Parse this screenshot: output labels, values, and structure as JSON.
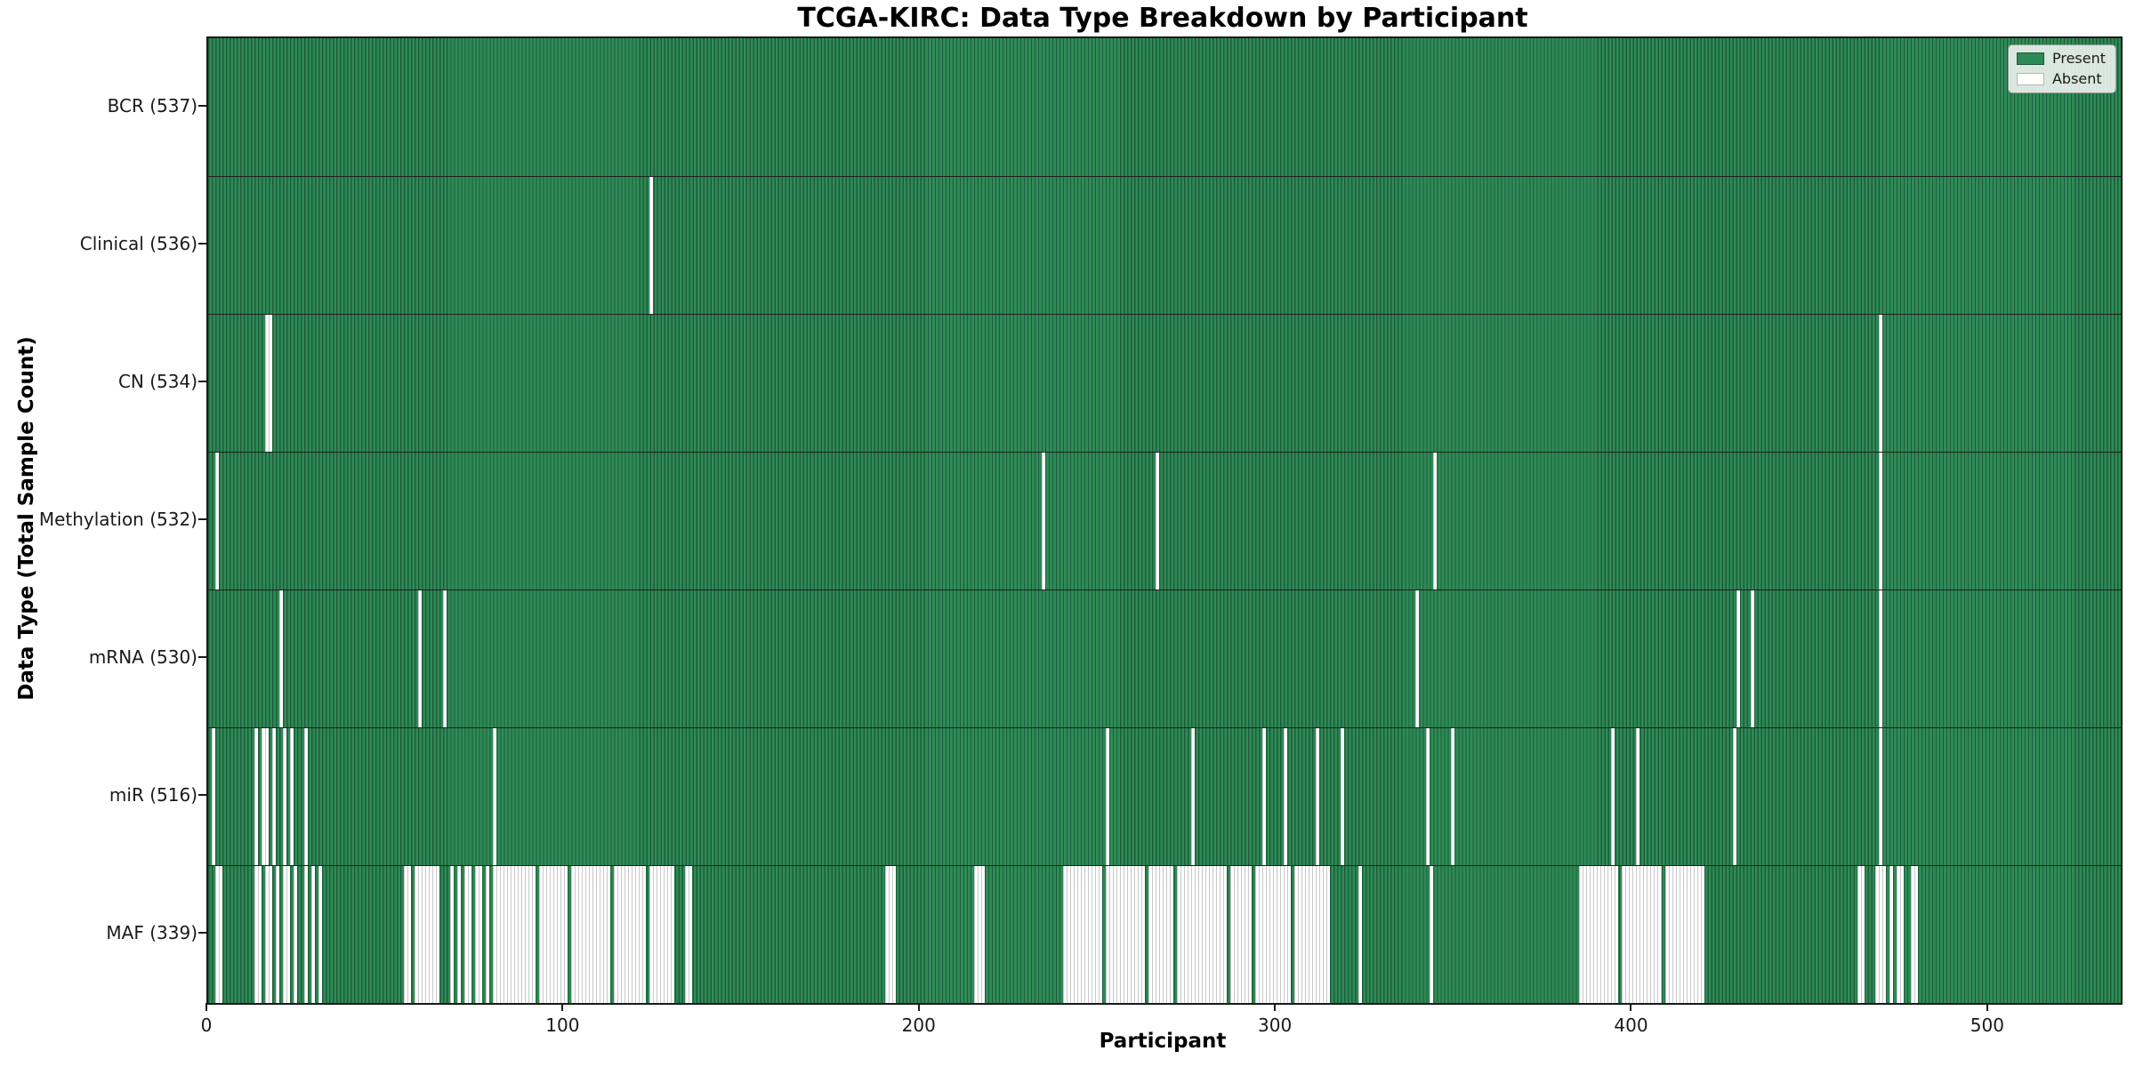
{
  "chart_data": {
    "type": "heatmap",
    "title": "TCGA-KIRC: Data Type Breakdown by Participant",
    "xlabel": "Participant",
    "ylabel": "Data Type (Total Sample Count)",
    "n_participants": 537,
    "x_ticks": [
      0,
      100,
      200,
      300,
      400,
      500
    ],
    "legend": {
      "position": "upper right",
      "present_label": "Present",
      "absent_label": "Absent"
    },
    "colors": {
      "present_fill": "#2e8b57",
      "present_edge": "#1d5c3a",
      "absent_fill": "#ffffff",
      "absent_edge": "#c9c9c9",
      "spine": "#1a1a1a"
    },
    "grid": false,
    "rows": [
      {
        "data_type": "BCR",
        "label": "BCR (537)",
        "present_count": 537,
        "absent_ranges": []
      },
      {
        "data_type": "Clinical",
        "label": "Clinical (536)",
        "present_count": 536,
        "absent_ranges": [
          [
            124,
            124
          ]
        ]
      },
      {
        "data_type": "CN",
        "label": "CN (534)",
        "present_count": 534,
        "absent_ranges": [
          [
            16,
            17
          ],
          [
            469,
            469
          ]
        ]
      },
      {
        "data_type": "Methylation",
        "label": "Methylation (532)",
        "present_count": 532,
        "absent_ranges": [
          [
            2,
            2
          ],
          [
            234,
            234
          ],
          [
            266,
            266
          ],
          [
            344,
            344
          ],
          [
            469,
            469
          ]
        ]
      },
      {
        "data_type": "mRNA",
        "label": "mRNA (530)",
        "present_count": 530,
        "absent_ranges": [
          [
            20,
            20
          ],
          [
            59,
            59
          ],
          [
            66,
            66
          ],
          [
            339,
            339
          ],
          [
            429,
            429
          ],
          [
            433,
            433
          ],
          [
            469,
            469
          ]
        ]
      },
      {
        "data_type": "miR",
        "label": "miR (516)",
        "present_count": 516,
        "absent_ranges": [
          [
            1,
            1
          ],
          [
            13,
            13
          ],
          [
            15,
            16
          ],
          [
            18,
            18
          ],
          [
            21,
            21
          ],
          [
            23,
            23
          ],
          [
            27,
            27
          ],
          [
            80,
            80
          ],
          [
            252,
            252
          ],
          [
            276,
            276
          ],
          [
            296,
            296
          ],
          [
            302,
            302
          ],
          [
            311,
            311
          ],
          [
            318,
            318
          ],
          [
            342,
            342
          ],
          [
            349,
            349
          ],
          [
            394,
            394
          ],
          [
            401,
            401
          ],
          [
            428,
            428
          ],
          [
            469,
            469
          ]
        ]
      },
      {
        "data_type": "MAF",
        "label": "MAF (339)",
        "present_count": 339,
        "absent_ranges": [
          [
            2,
            3
          ],
          [
            13,
            14
          ],
          [
            16,
            17
          ],
          [
            19,
            19
          ],
          [
            21,
            22
          ],
          [
            24,
            24
          ],
          [
            27,
            27
          ],
          [
            29,
            29
          ],
          [
            31,
            31
          ],
          [
            55,
            56
          ],
          [
            58,
            64
          ],
          [
            68,
            68
          ],
          [
            70,
            70
          ],
          [
            72,
            73
          ],
          [
            75,
            76
          ],
          [
            78,
            78
          ],
          [
            80,
            91
          ],
          [
            93,
            100
          ],
          [
            102,
            112
          ],
          [
            114,
            122
          ],
          [
            124,
            130
          ],
          [
            134,
            135
          ],
          [
            190,
            192
          ],
          [
            215,
            217
          ],
          [
            240,
            250
          ],
          [
            252,
            262
          ],
          [
            264,
            270
          ],
          [
            272,
            285
          ],
          [
            287,
            292
          ],
          [
            294,
            303
          ],
          [
            305,
            314
          ],
          [
            323,
            323
          ],
          [
            343,
            343
          ],
          [
            385,
            395
          ],
          [
            397,
            407
          ],
          [
            409,
            419
          ],
          [
            463,
            464
          ],
          [
            468,
            470
          ],
          [
            472,
            472
          ],
          [
            474,
            475
          ],
          [
            478,
            479
          ]
        ]
      }
    ]
  }
}
